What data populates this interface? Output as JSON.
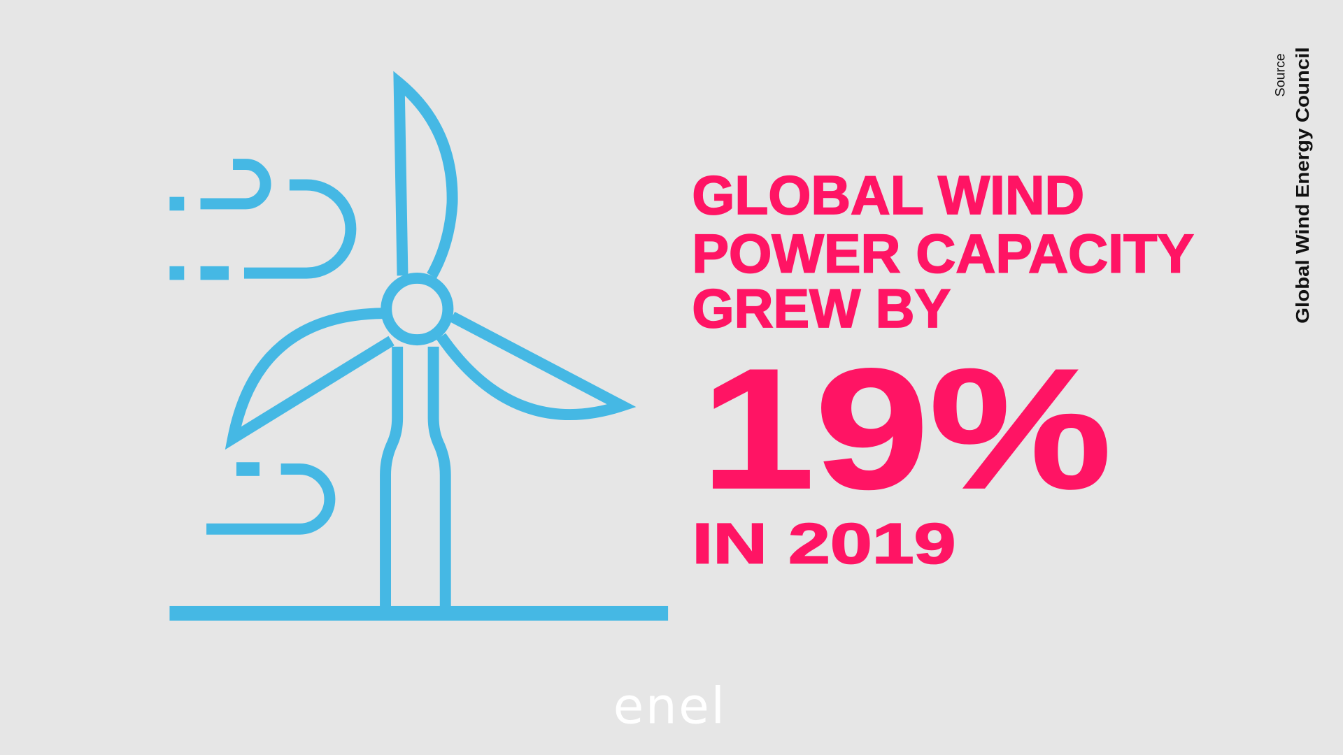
{
  "headline": {
    "lines": [
      "GLOBAL WIND",
      "POWER CAPACITY",
      "GREW BY"
    ],
    "figure": "19%",
    "period": "IN 2019"
  },
  "source": {
    "label": "Source",
    "name": "Global Wind Energy Council"
  },
  "logo": "enel"
}
